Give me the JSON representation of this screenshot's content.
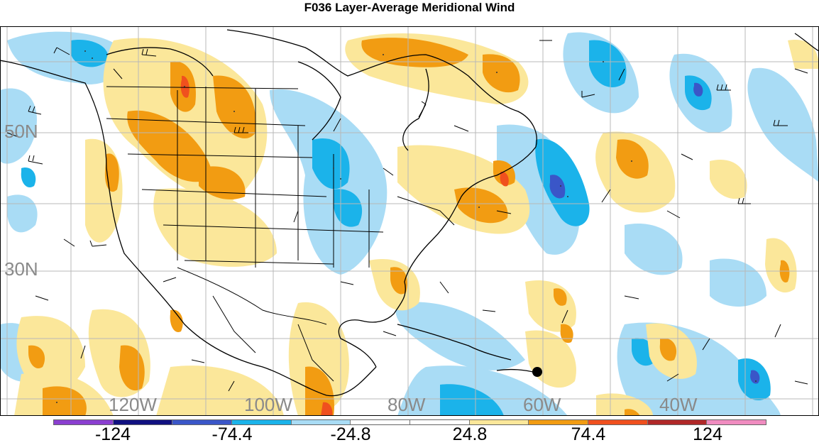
{
  "title": "F036 Layer-Average Meridional Wind",
  "lat_labels": [
    "50N",
    "30N"
  ],
  "lon_labels": [
    "120W",
    "100W",
    "80W",
    "60W",
    "40W"
  ],
  "legend": {
    "colors": [
      "#8a3fd0",
      "#101080",
      "#3a56c8",
      "#1bb3ea",
      "#a9dcf5",
      "#ffffff",
      "#ffffff",
      "#fbe79a",
      "#f29c12",
      "#f0501e",
      "#b02828",
      "#f08cc0"
    ],
    "labels": [
      "-124",
      "-74.4",
      "-24.8",
      "24.8",
      "74.4",
      "124"
    ]
  }
}
